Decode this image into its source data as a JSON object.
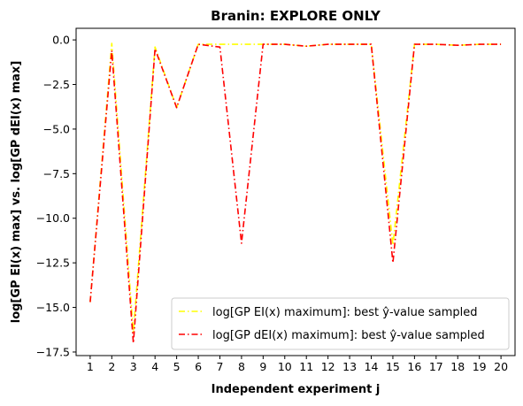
{
  "chart_data": {
    "type": "line",
    "title": "Branin: EXPLORE ONLY",
    "xlabel": "Independent experiment j",
    "ylabel": "log[GP EI(x) max] vs. log[GP dEI(x) max]",
    "x": [
      1,
      2,
      3,
      4,
      5,
      6,
      7,
      8,
      9,
      10,
      11,
      12,
      13,
      14,
      15,
      16,
      17,
      18,
      19,
      20
    ],
    "xlim": [
      0.35,
      20.65
    ],
    "ylim": [
      -17.7,
      0.65
    ],
    "yticks": [
      0.0,
      -2.5,
      -5.0,
      -7.5,
      -10.0,
      -12.5,
      -15.0,
      -17.5
    ],
    "ytick_labels": [
      "0.0",
      "−2.5",
      "−5.0",
      "−7.5",
      "−10.0",
      "−12.5",
      "−15.0",
      "−17.5"
    ],
    "xtick_labels": [
      "1",
      "2",
      "3",
      "4",
      "5",
      "6",
      "7",
      "8",
      "9",
      "10",
      "11",
      "12",
      "13",
      "14",
      "15",
      "16",
      "17",
      "18",
      "19",
      "20"
    ],
    "grid": false,
    "legend_position": "bottom-right",
    "series": [
      {
        "name": "log[GP EI(x) maximum]: best ŷ-value sampled",
        "color": "#ffff00",
        "style": "dash-dot",
        "values": [
          -14.7,
          -0.2,
          -16.4,
          -0.4,
          -3.8,
          -0.25,
          -0.25,
          -0.25,
          -0.25,
          -0.25,
          -0.35,
          -0.25,
          -0.25,
          -0.25,
          -11.5,
          -0.25,
          -0.25,
          -0.3,
          -0.25,
          -0.25
        ]
      },
      {
        "name": "log[GP dEI(x) maximum]: best ŷ-value sampled",
        "color": "#ff0000",
        "style": "dash-dot",
        "values": [
          -14.7,
          -0.6,
          -17.0,
          -0.5,
          -3.8,
          -0.25,
          -0.4,
          -11.4,
          -0.25,
          -0.25,
          -0.35,
          -0.25,
          -0.25,
          -0.25,
          -12.5,
          -0.25,
          -0.25,
          -0.3,
          -0.25,
          -0.25
        ]
      }
    ]
  }
}
